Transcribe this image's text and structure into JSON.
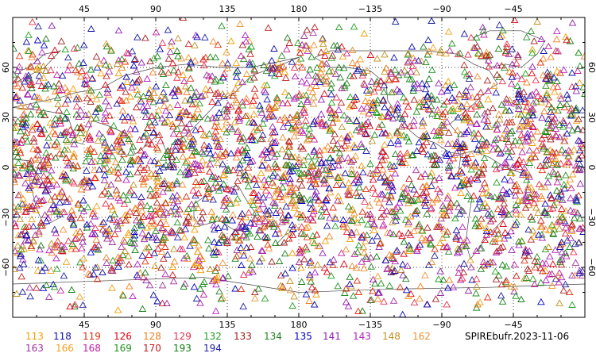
{
  "chart_data": {
    "type": "scatter",
    "projection": "cylindrical-equidistant",
    "center_longitude": 180,
    "lon_range": [
      0,
      360
    ],
    "lat_range": [
      -90,
      90
    ],
    "grid": "dotted",
    "marker": "triangle",
    "top_tick_labels": [
      "45",
      "90",
      "135",
      "180",
      "−135",
      "−90",
      "−45"
    ],
    "bottom_tick_labels": [
      "45",
      "90",
      "135",
      "180",
      "−135",
      "−90",
      "−45"
    ],
    "left_tick_labels": [
      "60",
      "30",
      "0",
      "−30",
      "−60"
    ],
    "right_tick_labels": [
      "60",
      "30",
      "0",
      "−30",
      "−60"
    ],
    "lat_ticks": [
      60,
      30,
      0,
      -30,
      -60
    ],
    "lon_ticks": [
      45,
      90,
      135,
      180,
      225,
      270,
      315
    ],
    "series": [
      {
        "name": "113",
        "color": "#f0a000"
      },
      {
        "name": "118",
        "color": "#1010a8"
      },
      {
        "name": "119",
        "color": "#e03010"
      },
      {
        "name": "126",
        "color": "#e00010"
      },
      {
        "name": "128",
        "color": "#f08020"
      },
      {
        "name": "129",
        "color": "#e83050"
      },
      {
        "name": "132",
        "color": "#20a020"
      },
      {
        "name": "133",
        "color": "#a02020"
      },
      {
        "name": "134",
        "color": "#208020"
      },
      {
        "name": "135",
        "color": "#0000c0"
      },
      {
        "name": "141",
        "color": "#9020b0"
      },
      {
        "name": "143",
        "color": "#b020c0"
      },
      {
        "name": "148",
        "color": "#c09020"
      },
      {
        "name": "162",
        "color": "#f09030"
      },
      {
        "name": "163",
        "color": "#a030a0"
      },
      {
        "name": "166",
        "color": "#f0a020"
      },
      {
        "name": "168",
        "color": "#c020a0"
      },
      {
        "name": "169",
        "color": "#209020"
      },
      {
        "name": "170",
        "color": "#c02020"
      },
      {
        "name": "193",
        "color": "#108010"
      },
      {
        "name": "194",
        "color": "#2020a0"
      }
    ]
  },
  "file_label": "SPIREbufr.2023-11-06"
}
